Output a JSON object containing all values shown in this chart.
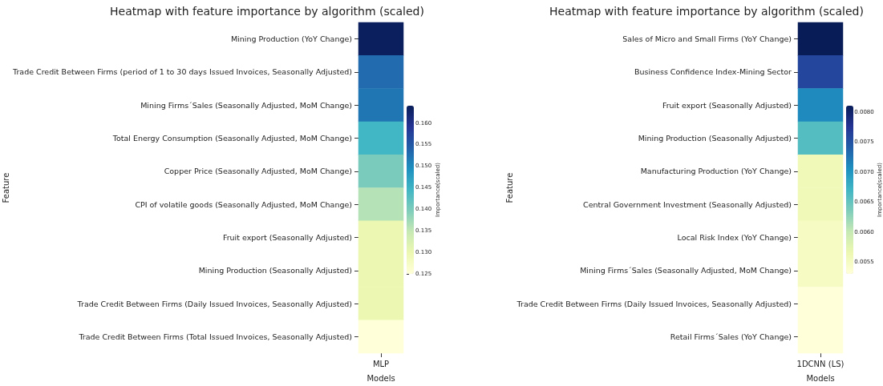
{
  "chart_data": [
    {
      "type": "heatmap",
      "title": "Heatmap with feature importance by algorithm (scaled)",
      "xlabel": "Models",
      "ylabel": "Feature",
      "clabel": "Importance(scaled)",
      "categories": [
        "MLP"
      ],
      "y_categories": [
        "Mining Production (YoY Change)",
        "Trade Credit Between Firms (period of 1 to 30 days Issued Invoices, Seasonally Adjusted)",
        "Mining Firms´Sales (Seasonally Adjusted, MoM Change)",
        "Total Energy Consumption (Seasonally Adjusted, MoM Change)",
        "Copper Price (Seasonally Adjusted, MoM Change)",
        "CPI of volatile goods (Seasonally Adjusted, MoM Change)",
        "Fruit export (Seasonally Adjusted)",
        "Mining Production (Seasonally Adjusted)",
        "Trade Credit Between Firms (Daily Issued Invoices, Seasonally Adjusted)",
        "Trade Credit Between Firms (Total Issued Invoices, Seasonally Adjusted)"
      ],
      "cells": [
        [
          0.1635
        ],
        [
          0.153
        ],
        [
          0.152
        ],
        [
          0.1445
        ],
        [
          0.14
        ],
        [
          0.136
        ],
        [
          0.13
        ],
        [
          0.13
        ],
        [
          0.13
        ],
        [
          0.125
        ]
      ],
      "clim": [
        0.125,
        0.164
      ],
      "cticks": [
        0.125,
        {
          "value": 0.13,
          "label": "0.130"
        },
        0.135,
        {
          "value": 0.14,
          "label": "0.140"
        },
        0.145,
        {
          "value": 0.15,
          "label": "0.150"
        },
        0.155,
        {
          "value": 0.16,
          "label": "0.160"
        }
      ]
    },
    {
      "type": "heatmap",
      "title": "Heatmap with feature importance by algorithm (scaled)",
      "xlabel": "Models",
      "ylabel": "Feature",
      "clabel": "Importance(scaled)",
      "categories": [
        "1DCNN (LS)"
      ],
      "y_categories": [
        "Sales of Micro and Small Firms (YoY Change)",
        "Business Confidence Index-Mining Sector",
        "Fruit export (Seasonally Adjusted)",
        "Mining Production (Seasonally Adjusted)",
        "Manufacturing Production (YoY Change)",
        "Central Government Investment (Seasonally Adjusted)",
        "Local Risk Index (YoY Change)",
        "Mining Firms´Sales (Seasonally Adjusted, MoM Change)",
        "Trade Credit Between Firms (Daily Issued Invoices, Seasonally Adjusted)",
        "Retail Firms´Sales (YoY Change)"
      ],
      "cells": [
        [
          0.0081
        ],
        [
          0.0076
        ],
        [
          0.0071
        ],
        [
          0.0066
        ],
        [
          0.0056
        ],
        [
          0.0056
        ],
        [
          0.0055
        ],
        [
          0.0055
        ],
        [
          0.0053
        ],
        [
          0.0053
        ]
      ],
      "clim": [
        0.0053,
        0.0081
      ],
      "cticks": [
        0.0055,
        {
          "value": 0.006,
          "label": "0.0060"
        },
        0.0065,
        {
          "value": 0.007,
          "label": "0.0070"
        },
        0.0075,
        {
          "value": 0.008,
          "label": "0.0080"
        }
      ]
    }
  ]
}
